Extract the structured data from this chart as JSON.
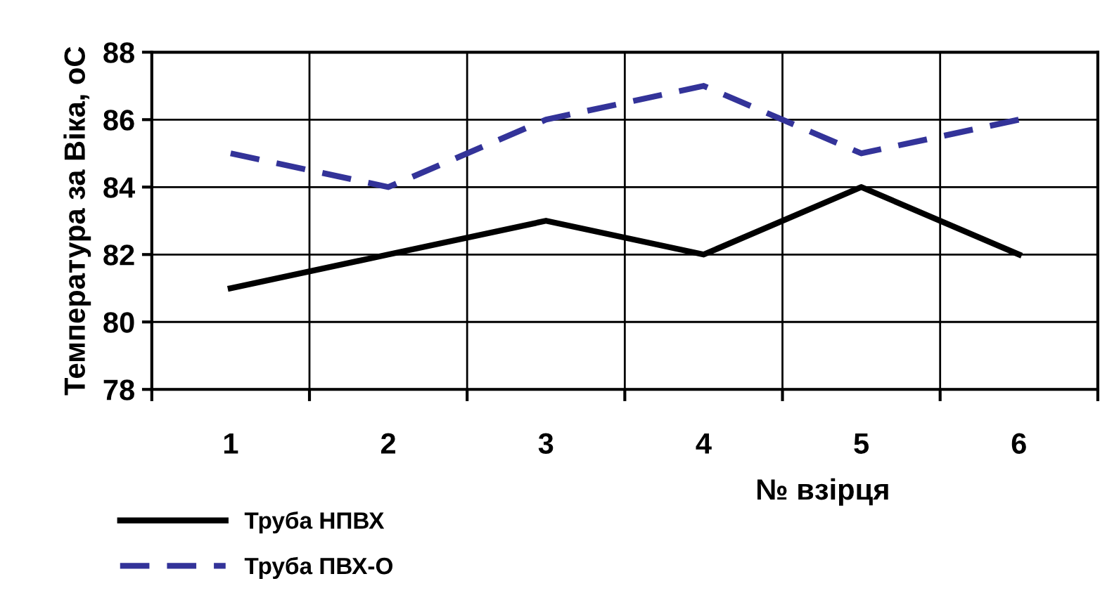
{
  "chart_data": {
    "type": "line",
    "ylabel": "Температура за Віка, оС",
    "xlabel": "№ взірця",
    "categories": [
      "1",
      "2",
      "3",
      "4",
      "5",
      "6"
    ],
    "series": [
      {
        "name": "Труба НПВХ",
        "color": "#000000",
        "line_style": "solid",
        "values": [
          81,
          82,
          83,
          82,
          84,
          82
        ]
      },
      {
        "name": "Труба ПВХ-О",
        "color": "#333399",
        "line_style": "dashed",
        "values": [
          85,
          84,
          86,
          87,
          85,
          86
        ]
      }
    ],
    "ylim": [
      78,
      88
    ],
    "yticks": [
      78,
      80,
      82,
      84,
      86,
      88
    ],
    "grid": true,
    "legend": "bottom left"
  }
}
